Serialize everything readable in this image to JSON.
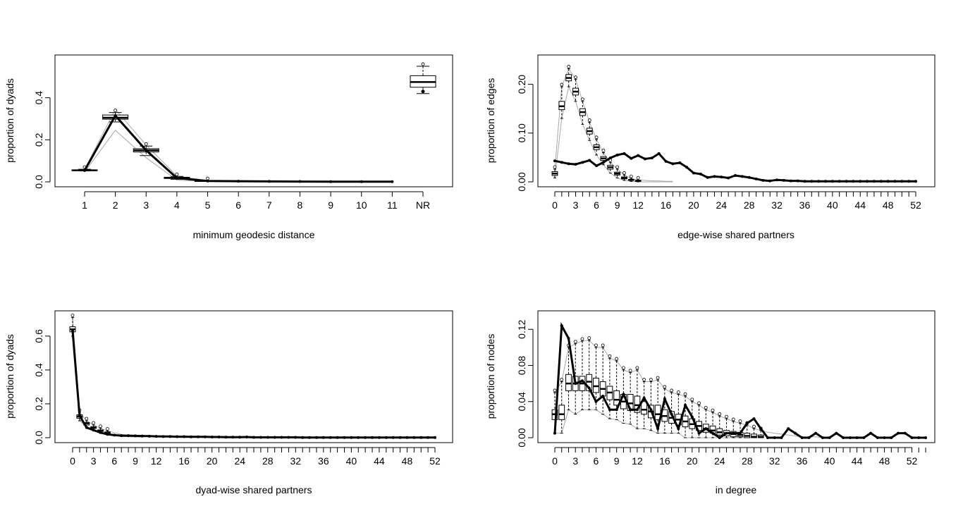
{
  "figure": {
    "title": ""
  },
  "chart_data": [
    {
      "id": "geodesic",
      "type": "boxplot-line",
      "xlabel": "minimum geodesic distance",
      "ylabel": "proportion of dyads",
      "x_ticks": [
        "1",
        "2",
        "3",
        "4",
        "5",
        "6",
        "7",
        "8",
        "9",
        "10",
        "11",
        "NR"
      ],
      "ylim": [
        0,
        0.58
      ],
      "y_ticks": [
        "0.0",
        "0.2",
        "0.4"
      ],
      "y_tick_values": [
        0,
        0.2,
        0.4
      ],
      "observed": [
        0.054,
        0.315,
        0.15,
        0.018,
        0.004,
        0.003,
        0.002,
        0.0015,
        0.001,
        0.001,
        0.001
      ],
      "box_x": [
        1,
        2,
        3,
        4,
        5,
        12
      ],
      "box_values": [
        [
          0.052,
          0.054,
          0.055,
          0.057,
          0.06
        ],
        [
          0.285,
          0.298,
          0.305,
          0.318,
          0.33
        ],
        [
          0.125,
          0.142,
          0.15,
          0.158,
          0.17
        ],
        [
          0.012,
          0.016,
          0.019,
          0.022,
          0.026
        ],
        [
          0.002,
          0.003,
          0.004,
          0.005,
          0.006
        ],
        [
          0.42,
          0.45,
          0.475,
          0.505,
          0.55
        ]
      ],
      "upper_band": [
        0.06,
        0.345,
        0.175,
        0.028,
        0.006,
        0.004,
        0.003,
        0.002,
        0.002,
        0.001,
        0.001
      ],
      "lower_band": [
        0.047,
        0.245,
        0.115,
        0.008,
        0.002,
        0.001,
        0.001,
        0.001,
        0.001,
        0.001,
        0.001
      ]
    },
    {
      "id": "esp",
      "type": "boxplot-line",
      "xlabel": "edge-wise shared partners",
      "ylabel": "proportion of edges",
      "x_ticks": [
        "0",
        "3",
        "6",
        "9",
        "12",
        "16",
        "20",
        "24",
        "28",
        "32",
        "36",
        "40",
        "44",
        "48",
        "52"
      ],
      "ylim": [
        0,
        0.25
      ],
      "y_ticks": [
        "0.00",
        "0.10",
        "0.20"
      ],
      "y_tick_values": [
        0,
        0.1,
        0.2
      ],
      "observed": [
        0.043,
        0.04,
        0.037,
        0.036,
        0.04,
        0.044,
        0.033,
        0.04,
        0.049,
        0.055,
        0.058,
        0.048,
        0.054,
        0.047,
        0.049,
        0.058,
        0.042,
        0.037,
        0.039,
        0.03,
        0.018,
        0.016,
        0.009,
        0.011,
        0.01,
        0.008,
        0.013,
        0.011,
        0.009,
        0.006,
        0.003,
        0.002,
        0.004,
        0.003,
        0.002,
        0.002,
        0.001,
        0.001,
        0.001,
        0.001,
        0.001,
        0.001,
        0.001,
        0.001,
        0.001,
        0.001,
        0.001,
        0.001,
        0.001,
        0.001,
        0.001,
        0.001,
        0.001
      ],
      "box_x": [
        0,
        1,
        2,
        3,
        4,
        5,
        6,
        7,
        8,
        9,
        10,
        11,
        12
      ],
      "box_values": [
        [
          0.008,
          0.013,
          0.017,
          0.021,
          0.026
        ],
        [
          0.13,
          0.148,
          0.155,
          0.165,
          0.195
        ],
        [
          0.195,
          0.207,
          0.213,
          0.22,
          0.232
        ],
        [
          0.165,
          0.178,
          0.185,
          0.192,
          0.21
        ],
        [
          0.118,
          0.136,
          0.143,
          0.15,
          0.165
        ],
        [
          0.085,
          0.098,
          0.104,
          0.11,
          0.122
        ],
        [
          0.055,
          0.066,
          0.071,
          0.076,
          0.087
        ],
        [
          0.035,
          0.044,
          0.048,
          0.052,
          0.06
        ],
        [
          0.018,
          0.026,
          0.03,
          0.034,
          0.04
        ],
        [
          0.008,
          0.014,
          0.017,
          0.02,
          0.026
        ],
        [
          0.003,
          0.006,
          0.008,
          0.01,
          0.014
        ],
        [
          0.001,
          0.003,
          0.004,
          0.005,
          0.007
        ],
        [
          0.0,
          0.001,
          0.002,
          0.003,
          0.004
        ]
      ],
      "upper_band": [
        0.026,
        0.195,
        0.232,
        0.21,
        0.165,
        0.122,
        0.087,
        0.06,
        0.04,
        0.026,
        0.014,
        0.007,
        0.004,
        0.003,
        0.002,
        0.002,
        0.001,
        0.001
      ],
      "lower_band": [
        0.008,
        0.13,
        0.195,
        0.165,
        0.118,
        0.085,
        0.055,
        0.035,
        0.018,
        0.008,
        0.003,
        0.001,
        0.0,
        0.0,
        0.0,
        0.0,
        0.0,
        0.0
      ]
    },
    {
      "id": "dsp",
      "type": "boxplot-line",
      "xlabel": "dyad-wise shared partners",
      "ylabel": "proportion of dyads",
      "x_ticks": [
        "0",
        "3",
        "6",
        "9",
        "12",
        "16",
        "20",
        "24",
        "28",
        "32",
        "36",
        "40",
        "44",
        "48",
        "52"
      ],
      "ylim": [
        0,
        0.72
      ],
      "y_ticks": [
        "0.0",
        "0.2",
        "0.4",
        "0.6"
      ],
      "y_tick_values": [
        0,
        0.2,
        0.4,
        0.6
      ],
      "observed": [
        0.63,
        0.13,
        0.06,
        0.045,
        0.03,
        0.02,
        0.015,
        0.012,
        0.012,
        0.011,
        0.01,
        0.009,
        0.008,
        0.007,
        0.007,
        0.006,
        0.006,
        0.005,
        0.005,
        0.005,
        0.004,
        0.004,
        0.003,
        0.003,
        0.003,
        0.004,
        0.002,
        0.002,
        0.002,
        0.002,
        0.002,
        0.002,
        0.002,
        0.001,
        0.001,
        0.001,
        0.001,
        0.001,
        0.001,
        0.001,
        0.001,
        0.001,
        0.001,
        0.001,
        0.001,
        0.001,
        0.001,
        0.001,
        0.001,
        0.001,
        0.001,
        0.001,
        0.001
      ],
      "box_x": [
        0,
        1,
        2,
        3,
        4,
        5
      ],
      "box_values": [
        [
          0.6,
          0.625,
          0.64,
          0.655,
          0.71
        ],
        [
          0.1,
          0.115,
          0.125,
          0.135,
          0.15
        ],
        [
          0.065,
          0.075,
          0.085,
          0.09,
          0.1
        ],
        [
          0.045,
          0.055,
          0.06,
          0.065,
          0.075
        ],
        [
          0.03,
          0.037,
          0.042,
          0.046,
          0.055
        ],
        [
          0.02,
          0.026,
          0.03,
          0.034,
          0.04
        ]
      ],
      "upper_band": [
        0.71,
        0.15,
        0.1,
        0.075,
        0.055,
        0.04,
        0.03,
        0.02,
        0.015,
        0.012,
        0.01
      ],
      "lower_band": [
        0.6,
        0.1,
        0.065,
        0.045,
        0.03,
        0.02,
        0.012,
        0.008,
        0.006,
        0.004,
        0.003
      ]
    },
    {
      "id": "indegree",
      "type": "boxplot-line",
      "xlabel": "in degree",
      "ylabel": "proportion of nodes",
      "x_ticks": [
        "0",
        "3",
        "6",
        "9",
        "12",
        "16",
        "20",
        "24",
        "28",
        "32",
        "36",
        "40",
        "44",
        "48",
        "52"
      ],
      "ylim": [
        0,
        0.135
      ],
      "y_ticks": [
        "0.00",
        "0.04",
        "0.08",
        "0.12"
      ],
      "y_tick_values": [
        0,
        0.04,
        0.08,
        0.12
      ],
      "observed": [
        0.005,
        0.124,
        0.11,
        0.06,
        0.063,
        0.055,
        0.04,
        0.046,
        0.031,
        0.031,
        0.048,
        0.031,
        0.031,
        0.044,
        0.031,
        0.01,
        0.043,
        0.026,
        0.01,
        0.036,
        0.023,
        0.005,
        0.01,
        0.005,
        0.0,
        0.005,
        0.005,
        0.005,
        0.016,
        0.021,
        0.01,
        0.0,
        0.0,
        0.0,
        0.01,
        0.005,
        0.0,
        0.0,
        0.005,
        0.0,
        0.0,
        0.005,
        0.0,
        0.0,
        0.0,
        0.0,
        0.005,
        0.0,
        0.0,
        0.0,
        0.005,
        0.005,
        0.0,
        0.0,
        0.0
      ],
      "box_x": [
        0,
        1,
        2,
        3,
        4,
        5,
        6,
        7,
        8,
        9,
        10,
        11,
        12,
        13,
        14,
        15,
        16,
        17,
        18,
        19,
        20,
        21,
        22,
        23,
        24,
        25,
        26,
        27,
        28,
        29,
        30
      ],
      "box_values": [
        [
          0.005,
          0.02,
          0.026,
          0.031,
          0.05
        ],
        [
          0.005,
          0.02,
          0.026,
          0.036,
          0.062
        ],
        [
          0.031,
          0.052,
          0.06,
          0.07,
          0.1
        ],
        [
          0.026,
          0.052,
          0.06,
          0.068,
          0.104
        ],
        [
          0.031,
          0.052,
          0.06,
          0.068,
          0.107
        ],
        [
          0.031,
          0.052,
          0.062,
          0.07,
          0.108
        ],
        [
          0.031,
          0.05,
          0.057,
          0.066,
          0.1
        ],
        [
          0.026,
          0.046,
          0.054,
          0.062,
          0.1
        ],
        [
          0.021,
          0.042,
          0.05,
          0.057,
          0.088
        ],
        [
          0.02,
          0.036,
          0.042,
          0.052,
          0.085
        ],
        [
          0.016,
          0.032,
          0.04,
          0.048,
          0.075
        ],
        [
          0.015,
          0.03,
          0.038,
          0.048,
          0.072
        ],
        [
          0.01,
          0.028,
          0.036,
          0.046,
          0.075
        ],
        [
          0.01,
          0.026,
          0.031,
          0.04,
          0.062
        ],
        [
          0.008,
          0.022,
          0.029,
          0.036,
          0.062
        ],
        [
          0.005,
          0.02,
          0.026,
          0.036,
          0.064
        ],
        [
          0.005,
          0.018,
          0.024,
          0.031,
          0.054
        ],
        [
          0.005,
          0.016,
          0.022,
          0.029,
          0.05
        ],
        [
          0.005,
          0.014,
          0.02,
          0.026,
          0.048
        ],
        [
          0.0,
          0.012,
          0.018,
          0.024,
          0.046
        ],
        [
          0.0,
          0.01,
          0.015,
          0.021,
          0.04
        ],
        [
          0.0,
          0.008,
          0.013,
          0.018,
          0.036
        ],
        [
          0.0,
          0.006,
          0.01,
          0.015,
          0.031
        ],
        [
          0.0,
          0.005,
          0.008,
          0.013,
          0.028
        ],
        [
          0.0,
          0.003,
          0.006,
          0.01,
          0.024
        ],
        [
          0.0,
          0.002,
          0.005,
          0.008,
          0.021
        ],
        [
          0.0,
          0.001,
          0.004,
          0.007,
          0.018
        ],
        [
          0.0,
          0.001,
          0.003,
          0.006,
          0.016
        ],
        [
          0.0,
          0.0,
          0.002,
          0.005,
          0.014
        ],
        [
          0.0,
          0.0,
          0.001,
          0.004,
          0.01
        ],
        [
          0.0,
          0.0,
          0.001,
          0.003,
          0.008
        ]
      ],
      "upper_band": [
        0.05,
        0.062,
        0.1,
        0.104,
        0.107,
        0.108,
        0.1,
        0.1,
        0.088,
        0.085,
        0.075,
        0.072,
        0.075,
        0.062,
        0.062,
        0.064,
        0.054,
        0.05,
        0.048,
        0.046,
        0.04,
        0.036,
        0.031,
        0.028,
        0.024,
        0.021,
        0.018,
        0.016,
        0.014,
        0.01,
        0.008,
        0.006,
        0.005,
        0.004,
        0.003,
        0.002,
        0.001,
        0.001,
        0.001,
        0.0
      ],
      "lower_band": [
        0.005,
        0.005,
        0.031,
        0.026,
        0.031,
        0.031,
        0.031,
        0.026,
        0.021,
        0.02,
        0.016,
        0.015,
        0.01,
        0.01,
        0.008,
        0.005,
        0.005,
        0.005,
        0.005,
        0.0,
        0.0,
        0.0,
        0.0,
        0.0,
        0.0,
        0.0,
        0.0,
        0.0,
        0.0,
        0.0
      ]
    }
  ]
}
